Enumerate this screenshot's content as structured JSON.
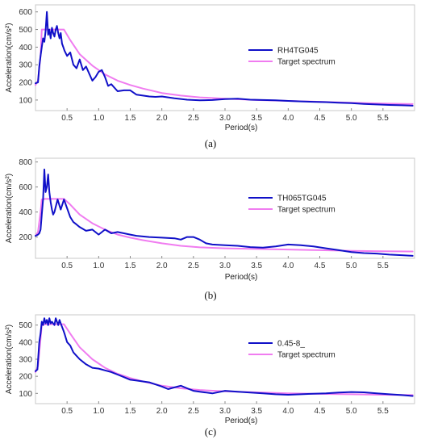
{
  "chart_data": [
    {
      "type": "line",
      "caption": "(a)",
      "xlabel": "Period(s)",
      "ylabel": "Acceleration(cm/s²)",
      "xlim": [
        0,
        6.0
      ],
      "ylim": [
        40,
        640
      ],
      "xticks": [
        0.5,
        1.0,
        1.5,
        2.0,
        2.5,
        3.0,
        3.5,
        4.0,
        4.5,
        5.0,
        5.5
      ],
      "xtick_labels": [
        "0.5",
        "1.0",
        "1.5",
        "2.0",
        "2.5",
        "3.0",
        "3.5",
        "4.0",
        "4.5",
        "5.0",
        "5.5"
      ],
      "yticks": [
        100,
        200,
        300,
        400,
        500,
        600
      ],
      "ytick_labels": [
        "100",
        "200",
        "300",
        "400",
        "500",
        "600"
      ],
      "legend_position": "upper-right",
      "series": [
        {
          "name": "RH4TG045",
          "color": "#1010c8",
          "x": [
            0,
            0.04,
            0.06,
            0.08,
            0.1,
            0.12,
            0.14,
            0.16,
            0.18,
            0.2,
            0.22,
            0.24,
            0.26,
            0.28,
            0.3,
            0.32,
            0.34,
            0.36,
            0.38,
            0.4,
            0.42,
            0.44,
            0.46,
            0.5,
            0.55,
            0.6,
            0.65,
            0.7,
            0.75,
            0.8,
            0.85,
            0.9,
            0.95,
            1.0,
            1.05,
            1.1,
            1.15,
            1.2,
            1.3,
            1.4,
            1.5,
            1.6,
            1.7,
            1.8,
            1.9,
            2.0,
            2.2,
            2.4,
            2.6,
            2.8,
            3.0,
            3.2,
            3.4,
            3.6,
            3.8,
            4.0,
            4.2,
            4.4,
            4.6,
            4.8,
            5.0,
            5.2,
            5.4,
            5.6,
            5.8,
            5.97
          ],
          "y": [
            195,
            200,
            290,
            350,
            400,
            450,
            430,
            490,
            600,
            470,
            500,
            450,
            510,
            480,
            460,
            500,
            520,
            480,
            450,
            480,
            420,
            400,
            380,
            350,
            370,
            300,
            280,
            330,
            270,
            290,
            250,
            210,
            230,
            260,
            270,
            230,
            180,
            190,
            150,
            155,
            155,
            130,
            125,
            120,
            118,
            120,
            110,
            102,
            98,
            100,
            105,
            108,
            102,
            100,
            98,
            95,
            92,
            90,
            88,
            85,
            82,
            78,
            75,
            72,
            70,
            68
          ]
        },
        {
          "name": "Target spectrum",
          "color": "#f07cf0",
          "x": [
            0,
            0.04,
            0.08,
            0.1,
            0.15,
            0.45,
            0.55,
            0.7,
            0.9,
            1.1,
            1.3,
            1.5,
            1.7,
            2.0,
            2.3,
            2.6,
            3.0,
            3.5,
            4.0,
            4.5,
            5.0,
            5.5,
            5.97
          ],
          "y": [
            185,
            210,
            350,
            500,
            500,
            500,
            440,
            360,
            295,
            245,
            210,
            185,
            165,
            140,
            125,
            115,
            108,
            100,
            95,
            90,
            85,
            80,
            77
          ]
        }
      ]
    },
    {
      "type": "line",
      "caption": "(b)",
      "xlabel": "Period(s)",
      "ylabel": "Acceleration(cm/s²)",
      "xlim": [
        0,
        6.0
      ],
      "ylim": [
        30,
        830
      ],
      "xticks": [
        0.5,
        1.0,
        1.5,
        2.0,
        2.5,
        3.0,
        3.5,
        4.0,
        4.5,
        5.0,
        5.5
      ],
      "xtick_labels": [
        "0.5",
        "1.0",
        "1.5",
        "2.0",
        "2.5",
        "3.0",
        "3.5",
        "4.0",
        "4.5",
        "5.0",
        "5.5"
      ],
      "yticks": [
        200,
        400,
        600,
        800
      ],
      "ytick_labels": [
        "200",
        "400",
        "600",
        "800"
      ],
      "legend_position": "upper-right",
      "series": [
        {
          "name": "TH065TG045",
          "color": "#1010c8",
          "x": [
            0,
            0.04,
            0.06,
            0.08,
            0.1,
            0.12,
            0.14,
            0.16,
            0.18,
            0.2,
            0.22,
            0.24,
            0.26,
            0.28,
            0.3,
            0.35,
            0.4,
            0.45,
            0.5,
            0.55,
            0.6,
            0.65,
            0.7,
            0.8,
            0.9,
            1.0,
            1.1,
            1.2,
            1.3,
            1.4,
            1.5,
            1.6,
            1.8,
            2.0,
            2.2,
            2.3,
            2.4,
            2.5,
            2.6,
            2.7,
            2.8,
            3.0,
            3.2,
            3.4,
            3.6,
            3.8,
            4.0,
            4.2,
            4.4,
            4.6,
            4.8,
            5.0,
            5.2,
            5.4,
            5.6,
            5.8,
            5.97
          ],
          "y": [
            210,
            220,
            230,
            260,
            380,
            500,
            740,
            560,
            600,
            700,
            560,
            480,
            420,
            380,
            400,
            500,
            420,
            500,
            430,
            360,
            320,
            300,
            280,
            250,
            260,
            220,
            260,
            230,
            240,
            230,
            220,
            210,
            200,
            195,
            190,
            180,
            200,
            200,
            180,
            150,
            140,
            135,
            130,
            120,
            115,
            125,
            140,
            135,
            125,
            110,
            95,
            80,
            72,
            68,
            60,
            55,
            50
          ]
        },
        {
          "name": "Target spectrum",
          "color": "#f07cf0",
          "x": [
            0,
            0.04,
            0.08,
            0.1,
            0.15,
            0.45,
            0.55,
            0.7,
            0.9,
            1.1,
            1.3,
            1.5,
            1.7,
            2.0,
            2.3,
            2.6,
            3.0,
            3.5,
            4.0,
            4.5,
            5.0,
            5.5,
            5.97
          ],
          "y": [
            210,
            240,
            400,
            500,
            505,
            505,
            460,
            380,
            310,
            260,
            220,
            195,
            175,
            150,
            130,
            118,
            110,
            105,
            100,
            95,
            90,
            87,
            85
          ]
        }
      ]
    },
    {
      "type": "line",
      "caption": "(c)",
      "xlabel": "Period(s)",
      "ylabel": "Acceleration(cm/s²)",
      "xlim": [
        0,
        6.0
      ],
      "ylim": [
        40,
        560
      ],
      "xticks": [
        0.5,
        1.0,
        1.5,
        2.0,
        2.5,
        3.0,
        3.5,
        4.0,
        4.5,
        5.0,
        5.5
      ],
      "xtick_labels": [
        "0.5",
        "1.0",
        "1.5",
        "2.0",
        "2.5",
        "3.0",
        "3.5",
        "4.0",
        "4.5",
        "5.0",
        "5.5"
      ],
      "yticks": [
        100,
        200,
        300,
        400,
        500
      ],
      "ytick_labels": [
        "100",
        "200",
        "300",
        "400",
        "500"
      ],
      "legend_position": "upper-right",
      "series": [
        {
          "name": "0.45-8_",
          "color": "#1010c8",
          "x": [
            0,
            0.03,
            0.06,
            0.08,
            0.1,
            0.12,
            0.14,
            0.16,
            0.18,
            0.2,
            0.22,
            0.24,
            0.26,
            0.28,
            0.3,
            0.32,
            0.34,
            0.36,
            0.38,
            0.4,
            0.42,
            0.44,
            0.46,
            0.5,
            0.55,
            0.6,
            0.65,
            0.7,
            0.8,
            0.9,
            1.0,
            1.1,
            1.2,
            1.3,
            1.4,
            1.5,
            1.6,
            1.8,
            2.0,
            2.1,
            2.2,
            2.3,
            2.4,
            2.5,
            2.6,
            2.8,
            3.0,
            3.2,
            3.4,
            3.6,
            3.8,
            4.0,
            4.2,
            4.4,
            4.6,
            4.8,
            5.0,
            5.2,
            5.4,
            5.6,
            5.8,
            5.97
          ],
          "y": [
            230,
            240,
            400,
            450,
            520,
            500,
            540,
            510,
            530,
            500,
            540,
            510,
            520,
            510,
            500,
            540,
            520,
            500,
            530,
            510,
            490,
            470,
            450,
            400,
            380,
            340,
            320,
            300,
            270,
            250,
            245,
            235,
            225,
            210,
            195,
            180,
            175,
            165,
            140,
            125,
            135,
            145,
            130,
            115,
            110,
            100,
            115,
            110,
            105,
            100,
            95,
            92,
            95,
            98,
            100,
            105,
            108,
            106,
            100,
            95,
            90,
            85
          ]
        },
        {
          "name": "Target spectrum",
          "color": "#f07cf0",
          "x": [
            0,
            0.04,
            0.08,
            0.1,
            0.15,
            0.45,
            0.55,
            0.7,
            0.9,
            1.1,
            1.3,
            1.5,
            1.7,
            2.0,
            2.3,
            2.6,
            3.0,
            3.5,
            4.0,
            4.5,
            5.0,
            5.5,
            5.97
          ],
          "y": [
            225,
            260,
            420,
            500,
            505,
            505,
            450,
            370,
            300,
            250,
            215,
            190,
            170,
            145,
            130,
            120,
            112,
            106,
            100,
            97,
            95,
            92,
            90
          ]
        }
      ]
    }
  ]
}
